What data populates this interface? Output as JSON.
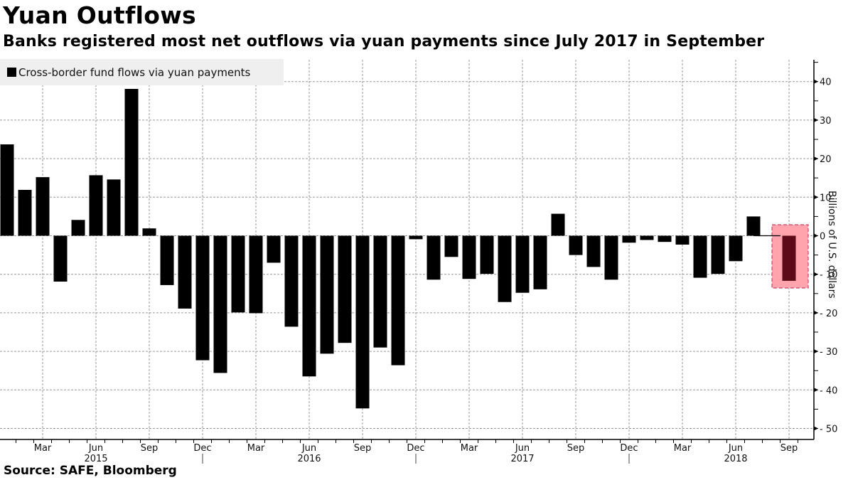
{
  "header": {
    "title": "Yuan Outflows",
    "subtitle": "Banks registered most net outflows via yuan payments since July 2017 in September"
  },
  "legend": {
    "label": "Cross-border fund flows via yuan payments",
    "swatch_color": "#000000"
  },
  "footer": {
    "source": "Source: SAFE, Bloomberg"
  },
  "colors": {
    "bar": "#000000",
    "highlight_bar": "#5c0a17",
    "highlight_fill": "#ffa3ad",
    "highlight_border": "#c24a66",
    "grid": "#9a9a9a",
    "legend_bg": "#efefef"
  },
  "chart_data": {
    "type": "bar",
    "title": "Yuan Outflows",
    "subtitle": "Banks registered most net outflows via yuan payments since July 2017 in September",
    "xlabel": "",
    "ylabel": "Billions of U.S. dollars",
    "ylim": [
      -53,
      46
    ],
    "yticks": [
      40,
      30,
      20,
      10,
      0,
      -10,
      -20,
      -30,
      -40,
      -50
    ],
    "grid": true,
    "legend_position": "top-left",
    "x_tick_labels": [
      {
        "label": "Mar",
        "index": 2
      },
      {
        "label": "Jun",
        "index": 5
      },
      {
        "label": "Sep",
        "index": 8
      },
      {
        "label": "Dec",
        "index": 11
      },
      {
        "label": "Mar",
        "index": 14
      },
      {
        "label": "Jun",
        "index": 17
      },
      {
        "label": "Sep",
        "index": 20
      },
      {
        "label": "Dec",
        "index": 23
      },
      {
        "label": "Mar",
        "index": 26
      },
      {
        "label": "Jun",
        "index": 29
      },
      {
        "label": "Sep",
        "index": 32
      },
      {
        "label": "Dec",
        "index": 35
      },
      {
        "label": "Mar",
        "index": 38
      },
      {
        "label": "Jun",
        "index": 41
      },
      {
        "label": "Sep",
        "index": 44
      }
    ],
    "year_labels": [
      {
        "label": "2015",
        "index": 5
      },
      {
        "label": "2016",
        "index": 17
      },
      {
        "label": "2017",
        "index": 29
      },
      {
        "label": "2018",
        "index": 41
      }
    ],
    "categories": [
      "Jan 2015",
      "Feb 2015",
      "Mar 2015",
      "Apr 2015",
      "May 2015",
      "Jun 2015",
      "Jul 2015",
      "Aug 2015",
      "Sep 2015",
      "Oct 2015",
      "Nov 2015",
      "Dec 2015",
      "Jan 2016",
      "Feb 2016",
      "Mar 2016",
      "Apr 2016",
      "May 2016",
      "Jun 2016",
      "Jul 2016",
      "Aug 2016",
      "Sep 2016",
      "Oct 2016",
      "Nov 2016",
      "Dec 2016",
      "Jan 2017",
      "Feb 2017",
      "Mar 2017",
      "Apr 2017",
      "May 2017",
      "Jun 2017",
      "Jul 2017",
      "Aug 2017",
      "Sep 2017",
      "Oct 2017",
      "Nov 2017",
      "Dec 2017",
      "Jan 2018",
      "Feb 2018",
      "Mar 2018",
      "Apr 2018",
      "May 2018",
      "Jun 2018",
      "Jul 2018",
      "Aug 2018",
      "Sep 2018"
    ],
    "series": [
      {
        "name": "Cross-border fund flows via yuan payments",
        "values": [
          23.7,
          11.9,
          15.2,
          -11.9,
          4.1,
          15.7,
          14.6,
          38.1,
          1.9,
          -12.8,
          -18.9,
          -32.3,
          -35.6,
          -19.9,
          -20.1,
          -7.0,
          -23.6,
          -36.5,
          -30.6,
          -27.8,
          -44.8,
          -29.0,
          -33.6,
          -0.9,
          -11.4,
          -5.5,
          -11.2,
          -9.9,
          -17.2,
          -14.8,
          -13.9,
          5.7,
          -5.0,
          -8.1,
          -11.4,
          -1.8,
          -1.1,
          -1.6,
          -2.3,
          -10.9,
          -9.9,
          -6.6,
          5.0,
          0.1,
          -11.7
        ]
      }
    ],
    "highlight": {
      "index": 44,
      "label": "Sep 2018"
    }
  }
}
